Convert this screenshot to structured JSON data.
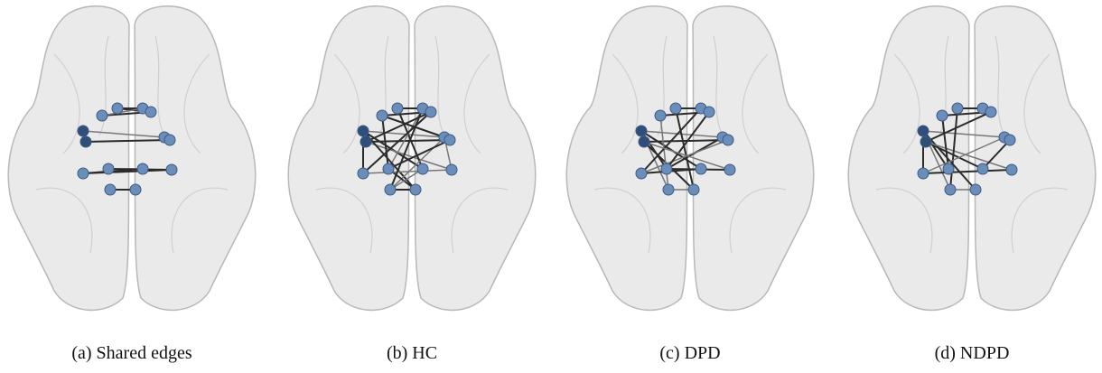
{
  "panels": [
    {
      "caption": "(a) Shared edges"
    },
    {
      "caption": "(b) HC"
    },
    {
      "caption": "(c) DPD"
    },
    {
      "caption": "(d) NDPD"
    }
  ]
}
